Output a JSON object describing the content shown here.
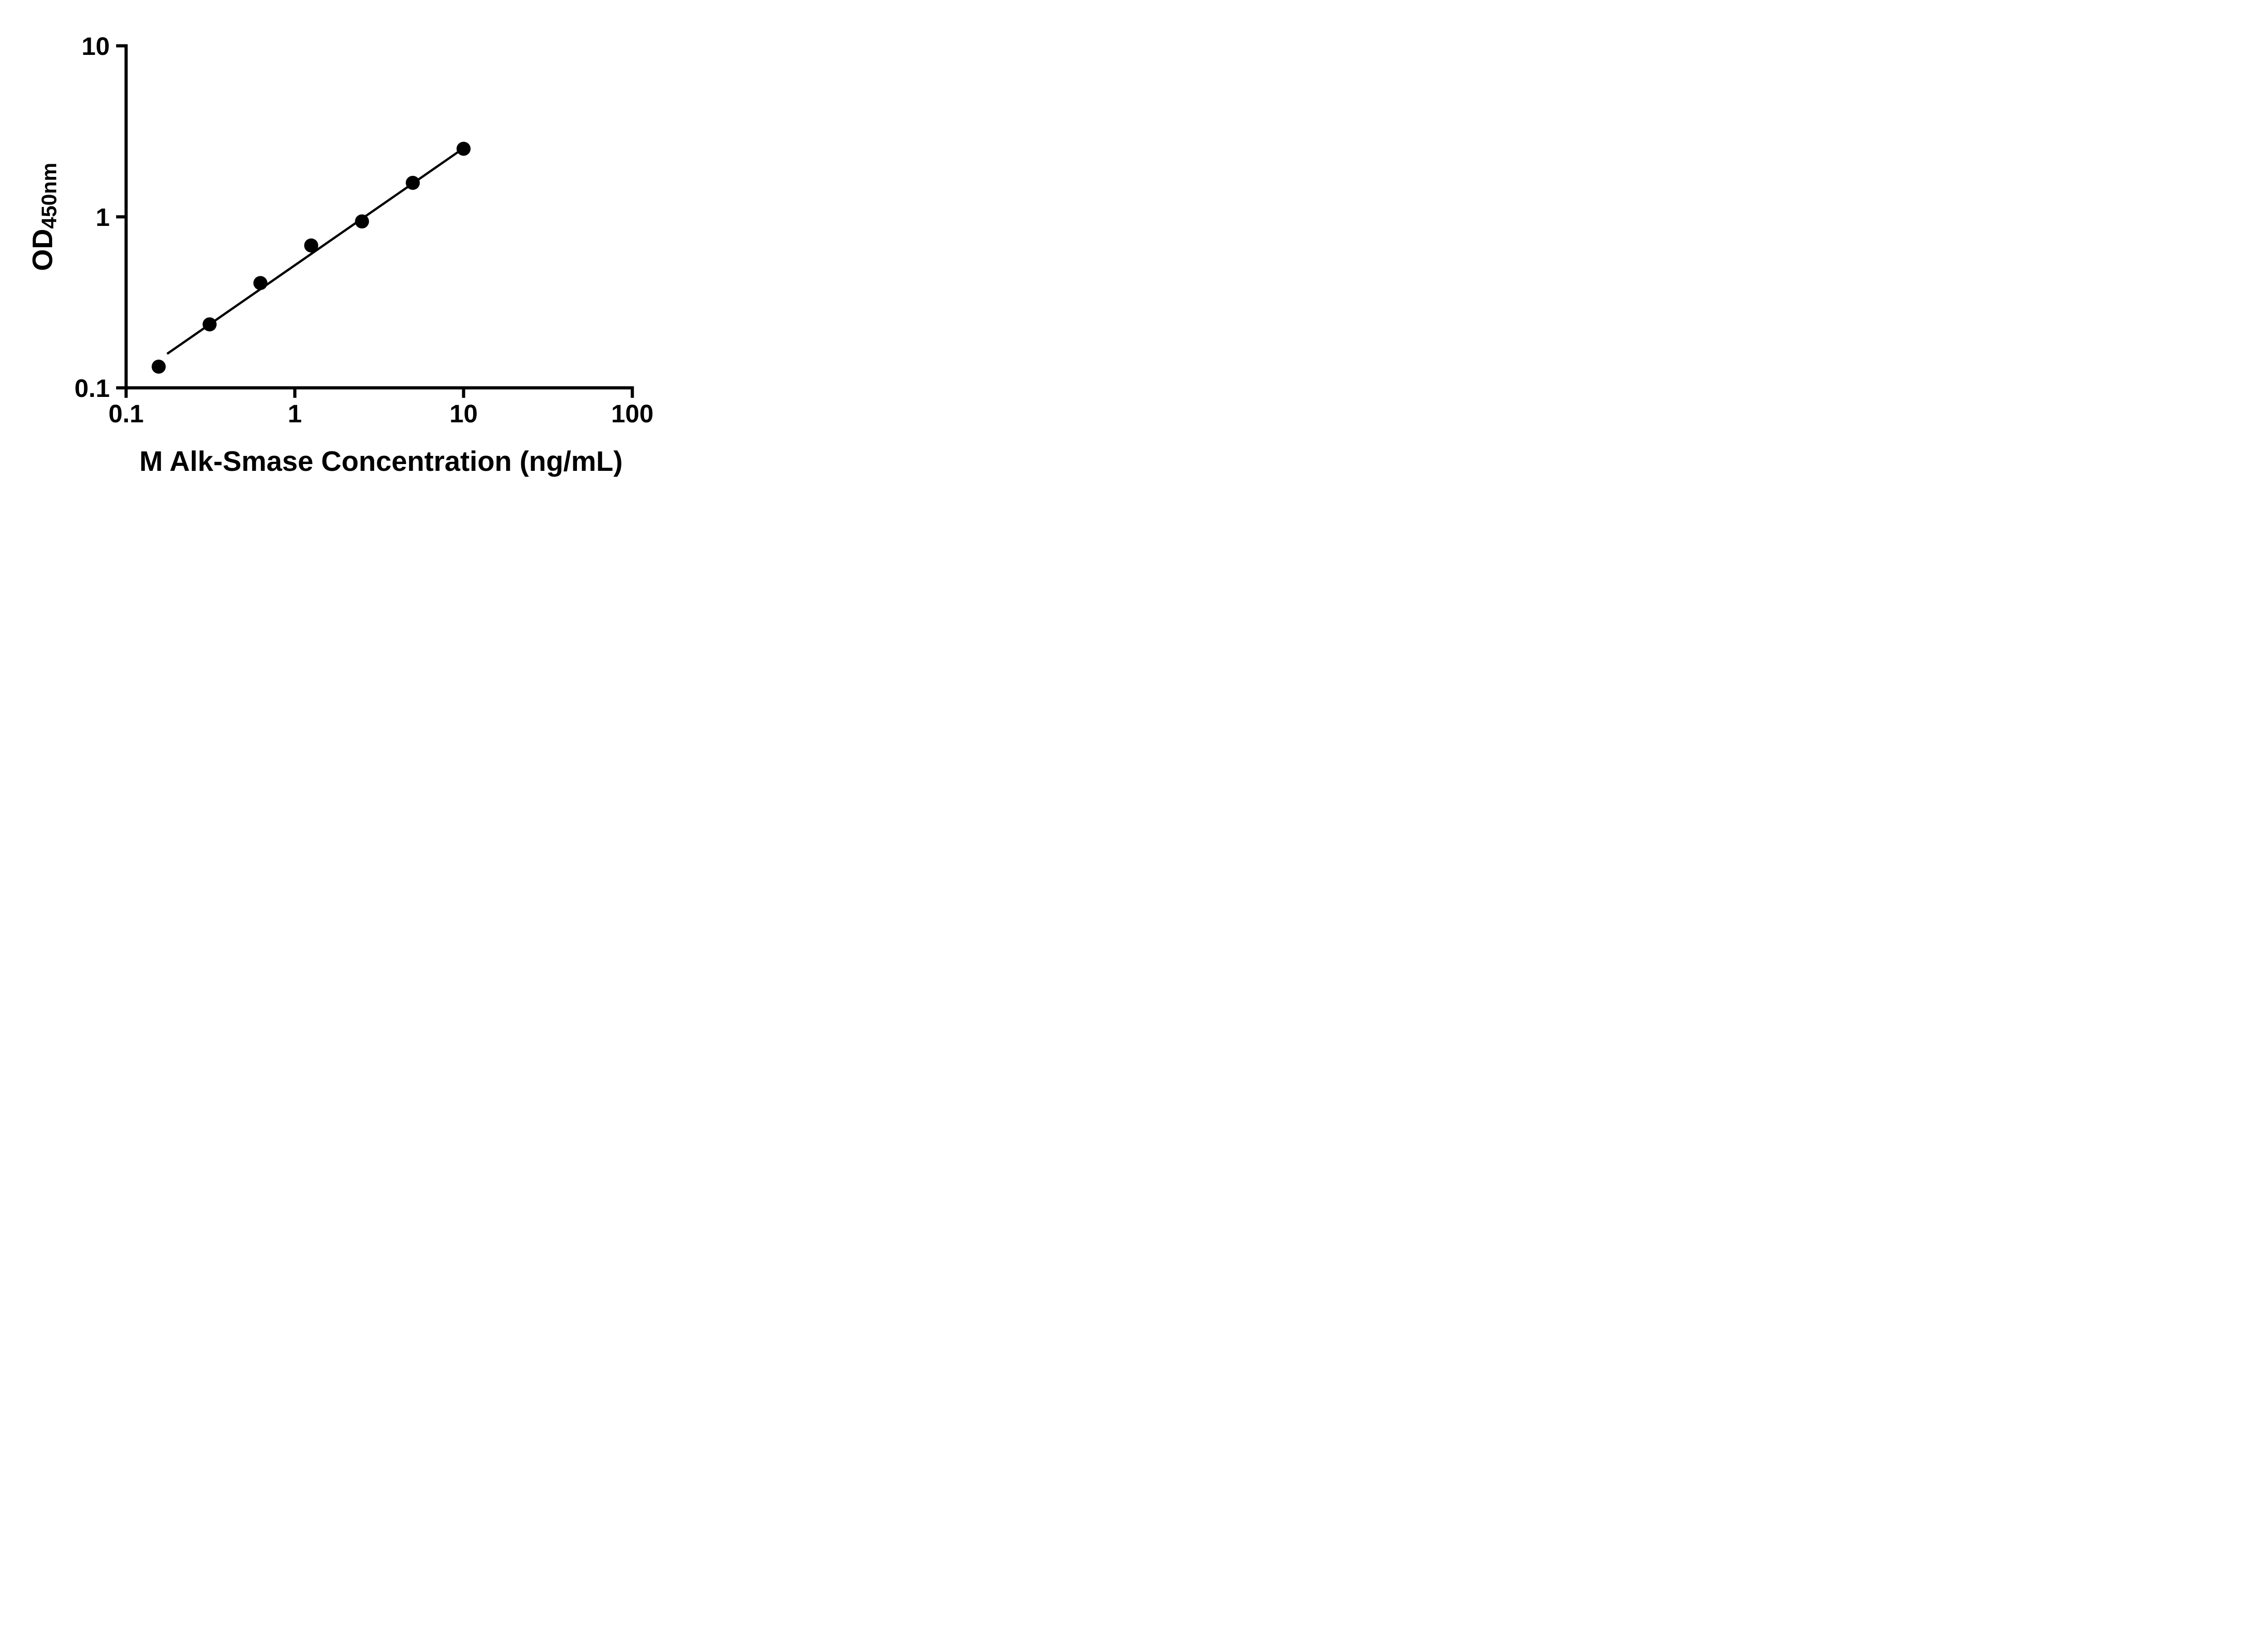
{
  "figure": {
    "background": "#ffffff",
    "axis_color": "#000000"
  },
  "chart_data": {
    "type": "scatter",
    "title": "",
    "xlabel": "M Alk-Smase Concentration (ng/mL)",
    "ylabel": "OD",
    "ylabel_subscript": "450nm",
    "x_scale": "log",
    "y_scale": "log",
    "xlim": [
      0.1,
      100
    ],
    "ylim": [
      0.1,
      10
    ],
    "x_ticks": [
      0.1,
      1,
      10,
      100
    ],
    "y_ticks": [
      0.1,
      1,
      10
    ],
    "grid": false,
    "legend": null,
    "marker_color": "#000000",
    "line_color": "#000000",
    "x": [
      0.156,
      0.3125,
      0.625,
      1.25,
      2.5,
      5,
      10
    ],
    "y": [
      0.133,
      0.235,
      0.41,
      0.68,
      0.94,
      1.58,
      2.5
    ],
    "trendline": {
      "x1": 0.175,
      "y1": 0.158,
      "x2": 10,
      "y2": 2.52
    }
  }
}
